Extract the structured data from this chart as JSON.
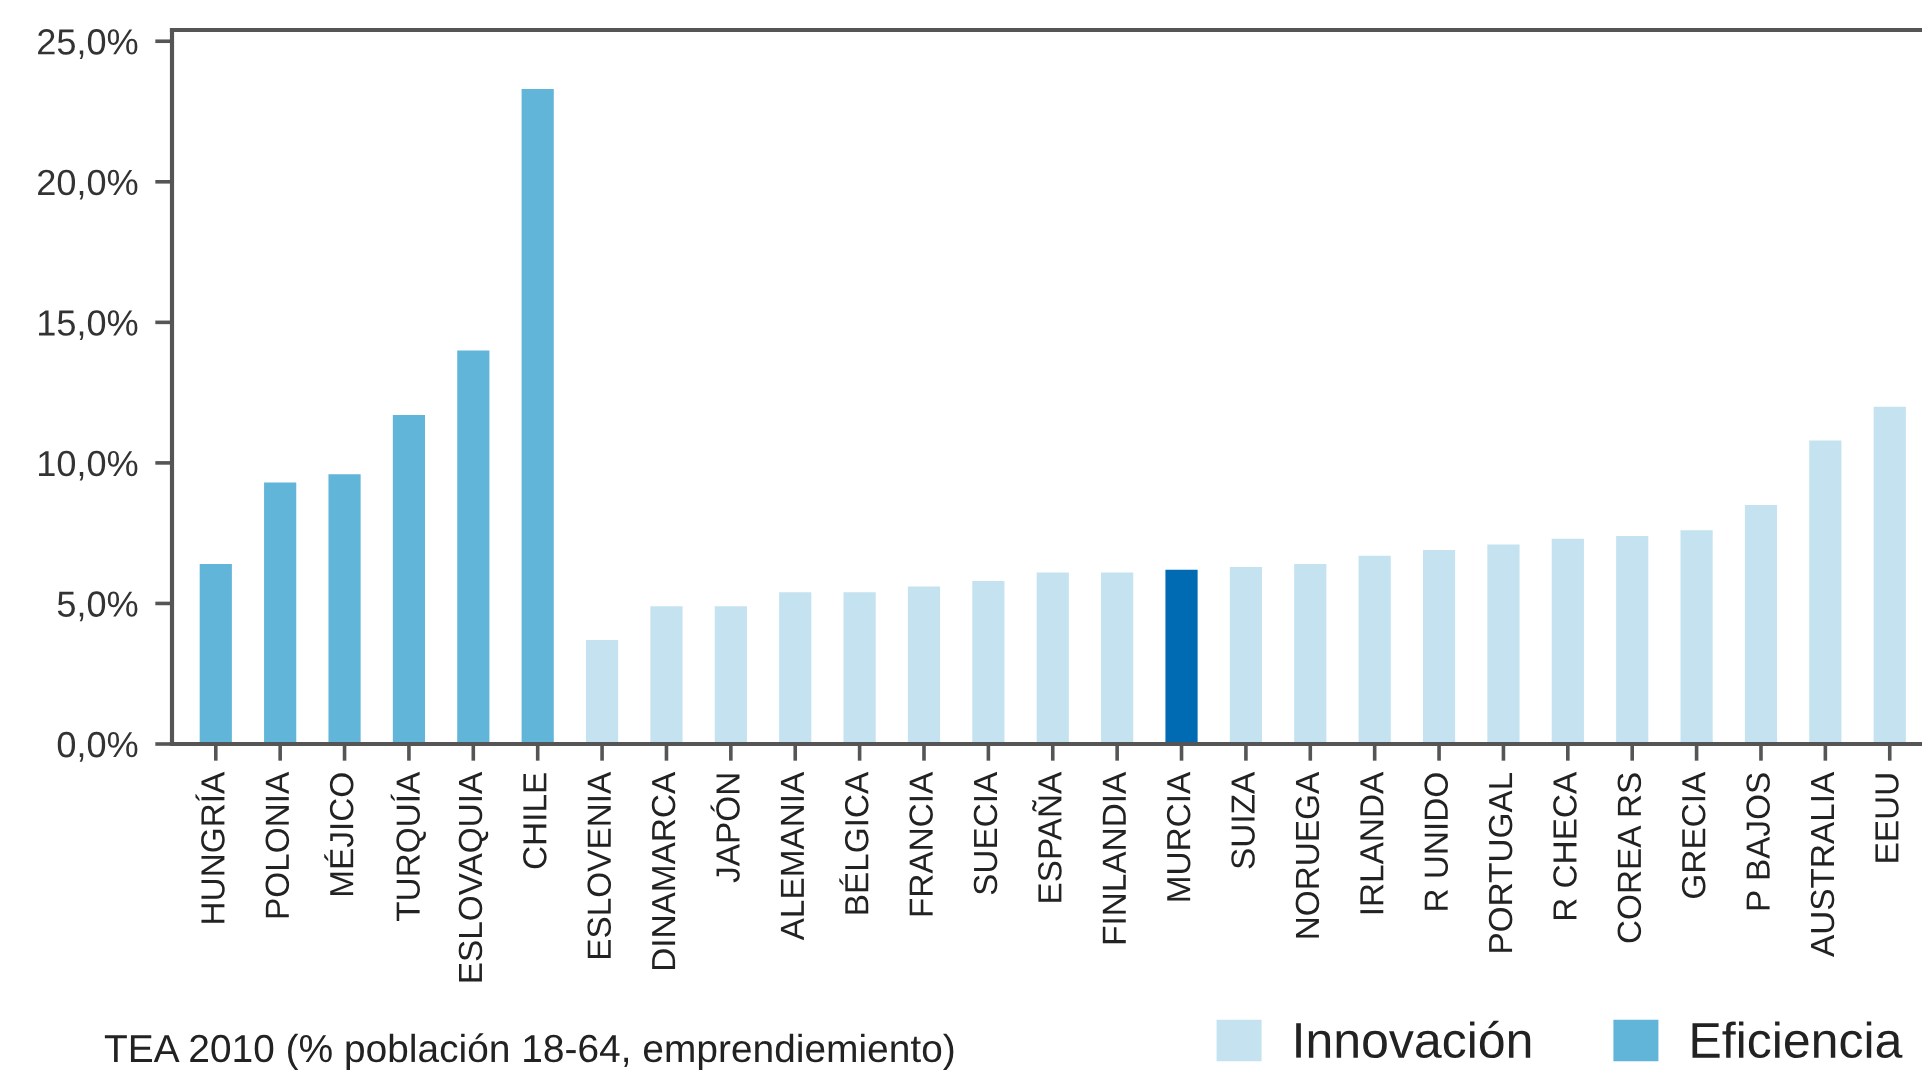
{
  "chart_data": {
    "type": "bar",
    "stacked": true,
    "categories": [
      "HUNGRÍA",
      "POLONIA",
      "MÉJICO",
      "TURQUÍA",
      "ESLOVAQUIA",
      "CHILE",
      "ESLOVENIA",
      "DINAMARCA",
      "JAPÓN",
      "ALEMANIA",
      "BÉLGICA",
      "FRANCIA",
      "SUECIA",
      "ESPAÑA",
      "FINLANDIA",
      "MURCIA",
      "SUIZA",
      "NORUEGA",
      "IRLANDA",
      "R UNIDO",
      "PORTUGAL",
      "R CHECA",
      "COREA RS",
      "GRECIA",
      "P BAJOS",
      "AUSTRALIA",
      "EEUU"
    ],
    "series": [
      {
        "name": "Innovación",
        "color": "#c5e2f0",
        "values": [
          null,
          null,
          null,
          null,
          null,
          null,
          3.7,
          4.9,
          4.9,
          5.4,
          5.4,
          5.6,
          5.8,
          6.1,
          6.1,
          null,
          6.3,
          6.4,
          6.7,
          6.9,
          7.1,
          7.3,
          7.4,
          7.6,
          8.5,
          10.8,
          12.0
        ]
      },
      {
        "name": "Eficiencia",
        "color": "#61b5d9",
        "values": [
          6.4,
          9.3,
          9.6,
          11.7,
          14.0,
          23.3,
          null,
          null,
          null,
          null,
          null,
          null,
          null,
          null,
          null,
          null,
          null,
          null,
          null,
          null,
          null,
          null,
          null,
          null,
          null,
          null,
          null
        ]
      },
      {
        "color": "#006bb3",
        "values": [
          null,
          null,
          null,
          null,
          null,
          null,
          null,
          null,
          null,
          null,
          null,
          null,
          null,
          null,
          null,
          6.2,
          null,
          null,
          null,
          null,
          null,
          null,
          null,
          null,
          null,
          null,
          null
        ]
      }
    ],
    "ylim": [
      0,
      25.4
    ],
    "yticks": [
      {
        "value": 0,
        "label": "0,0%"
      },
      {
        "value": 5,
        "label": "5,0%"
      },
      {
        "value": 10,
        "label": "10,0%"
      },
      {
        "value": 15,
        "label": "15,0%"
      },
      {
        "value": 20,
        "label": "20,0%"
      },
      {
        "value": 25,
        "label": "25,0%"
      }
    ],
    "grid": false,
    "legend": "bottom right",
    "annotations": [
      "TEA 2010 (% población 18-64, emprendiemiento)"
    ]
  }
}
